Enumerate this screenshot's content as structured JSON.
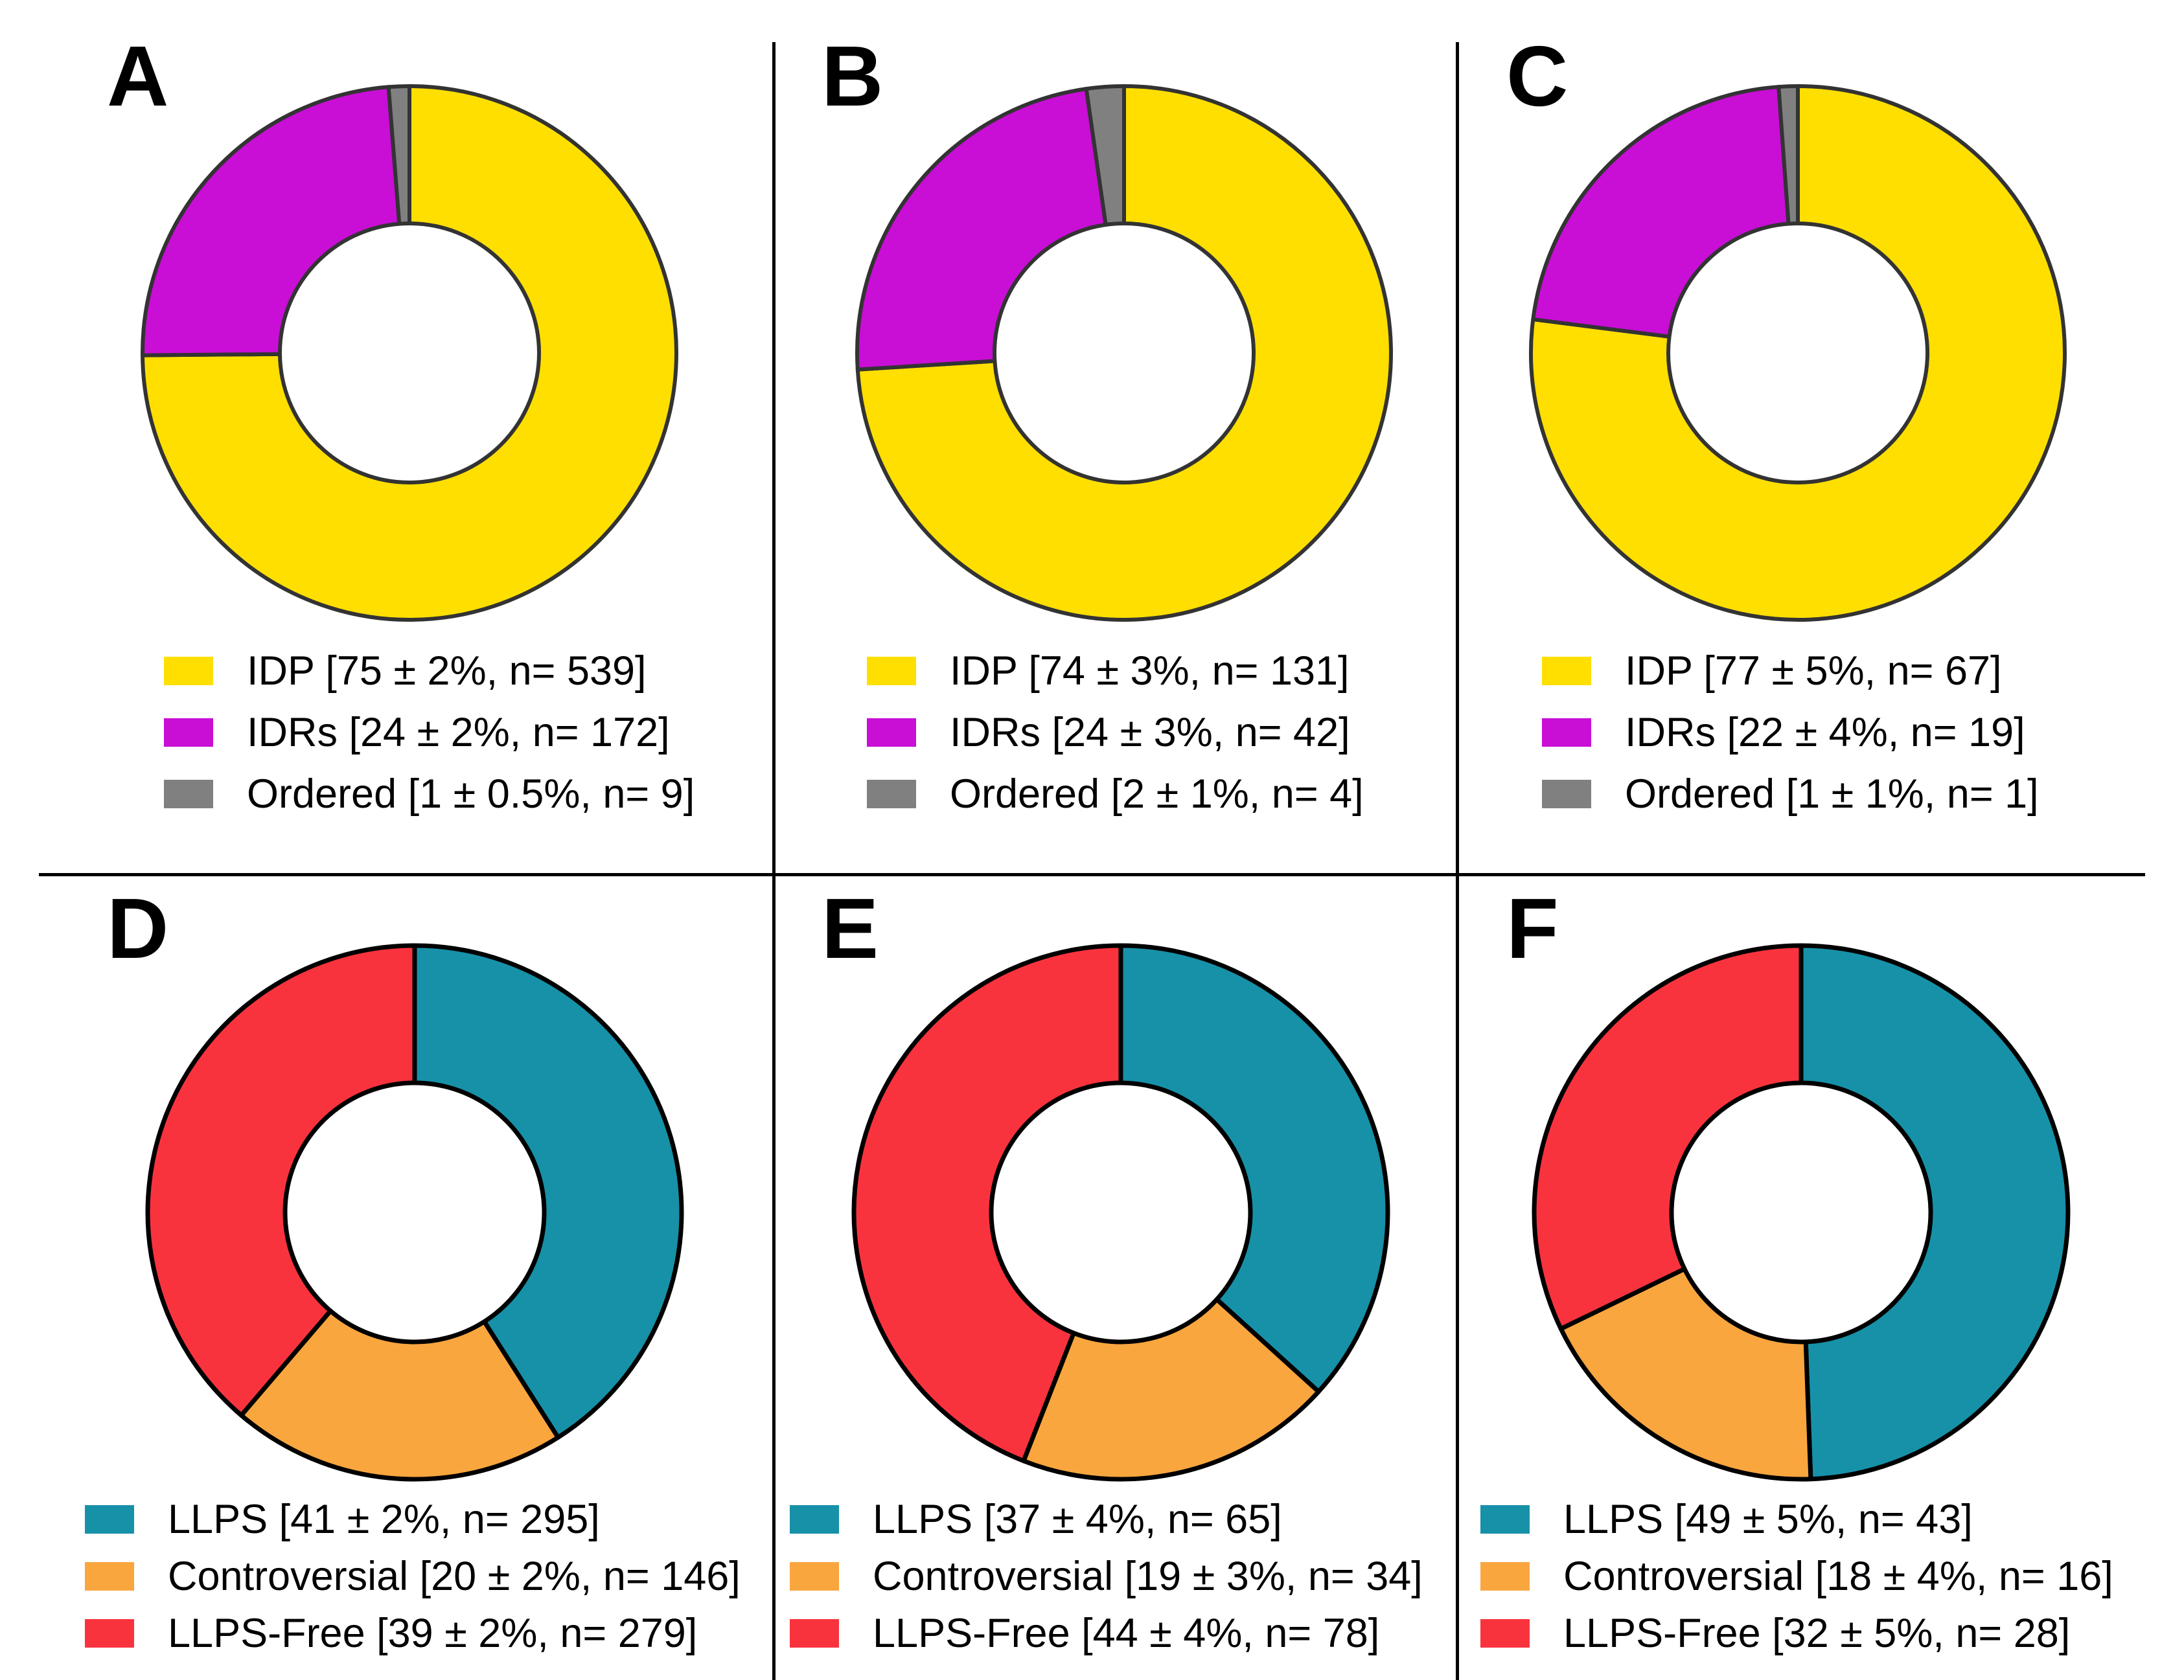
{
  "figure": {
    "description_visible_panels": [
      "A",
      "B",
      "C",
      "D",
      "E",
      "F"
    ],
    "divider_color": "#000000",
    "background": "#ffffff",
    "stroke_top_row": "#333333",
    "stroke_bottom_row": "#000000"
  },
  "chart_data": [
    {
      "panel": "A",
      "type": "pie",
      "subtype": "donut",
      "start_angle_deg": 0,
      "direction": "clockwise",
      "hole_ratio": 0.48,
      "legend_position": "below-left",
      "categories": [
        "IDP",
        "IDRs",
        "Ordered"
      ],
      "values_n": [
        539,
        172,
        9
      ],
      "percent": [
        75,
        24,
        1
      ],
      "error_pct": [
        2,
        2,
        0.5
      ],
      "colors": [
        "#FFDF00",
        "#C90ED6",
        "#808080"
      ],
      "legend": [
        "IDP [75 ± 2%, n= 539]",
        "IDRs [24 ± 2%, n= 172]",
        "Ordered [1 ± 0.5%, n= 9]"
      ]
    },
    {
      "panel": "B",
      "type": "pie",
      "subtype": "donut",
      "start_angle_deg": 0,
      "direction": "clockwise",
      "hole_ratio": 0.48,
      "legend_position": "below-left",
      "categories": [
        "IDP",
        "IDRs",
        "Ordered"
      ],
      "values_n": [
        131,
        42,
        4
      ],
      "percent": [
        74,
        24,
        2
      ],
      "error_pct": [
        3,
        3,
        1
      ],
      "colors": [
        "#FFDF00",
        "#C90ED6",
        "#808080"
      ],
      "legend": [
        "IDP [74 ± 3%, n= 131]",
        "IDRs [24 ± 3%, n= 42]",
        "Ordered [2 ± 1%, n= 4]"
      ]
    },
    {
      "panel": "C",
      "type": "pie",
      "subtype": "donut",
      "start_angle_deg": 0,
      "direction": "clockwise",
      "hole_ratio": 0.48,
      "legend_position": "below-left",
      "categories": [
        "IDP",
        "IDRs",
        "Ordered"
      ],
      "values_n": [
        67,
        19,
        1
      ],
      "percent": [
        77,
        22,
        1
      ],
      "error_pct": [
        5,
        4,
        1
      ],
      "colors": [
        "#FFDF00",
        "#C90ED6",
        "#808080"
      ],
      "legend": [
        "IDP [77 ± 5%, n= 67]",
        "IDRs [22 ± 4%, n= 19]",
        "Ordered [1 ± 1%, n= 1]"
      ]
    },
    {
      "panel": "D",
      "type": "pie",
      "subtype": "donut",
      "start_angle_deg": 0,
      "direction": "clockwise",
      "hole_ratio": 0.48,
      "legend_position": "below-left",
      "categories": [
        "LLPS",
        "Controversial",
        "LLPS-Free"
      ],
      "values_n": [
        295,
        146,
        279
      ],
      "percent": [
        41,
        20,
        39
      ],
      "error_pct": [
        2,
        2,
        2
      ],
      "colors": [
        "#1791A8",
        "#F9A63F",
        "#F9333E"
      ],
      "legend": [
        "LLPS [41 ± 2%, n= 295]",
        "Controversial [20 ± 2%, n= 146]",
        "LLPS-Free [39 ± 2%, n= 279]"
      ]
    },
    {
      "panel": "E",
      "type": "pie",
      "subtype": "donut",
      "start_angle_deg": 0,
      "direction": "clockwise",
      "hole_ratio": 0.48,
      "legend_position": "below-left",
      "categories": [
        "LLPS",
        "Controversial",
        "LLPS-Free"
      ],
      "values_n": [
        65,
        34,
        78
      ],
      "percent": [
        37,
        19,
        44
      ],
      "error_pct": [
        4,
        3,
        4
      ],
      "colors": [
        "#1791A8",
        "#F9A63F",
        "#F9333E"
      ],
      "legend": [
        "LLPS [37 ± 4%, n= 65]",
        "Controversial [19 ± 3%, n= 34]",
        "LLPS-Free [44 ± 4%, n= 78]"
      ]
    },
    {
      "panel": "F",
      "type": "pie",
      "subtype": "donut",
      "start_angle_deg": 0,
      "direction": "clockwise",
      "hole_ratio": 0.48,
      "legend_position": "below-left",
      "categories": [
        "LLPS",
        "Controversial",
        "LLPS-Free"
      ],
      "values_n": [
        43,
        16,
        28
      ],
      "percent": [
        49,
        18,
        32
      ],
      "error_pct": [
        5,
        4,
        5
      ],
      "colors": [
        "#1791A8",
        "#F9A63F",
        "#F9333E"
      ],
      "legend": [
        "LLPS [49 ± 5%, n= 43]",
        "Controversial [18 ± 4%, n= 16]",
        "LLPS-Free [32 ± 5%, n= 28]"
      ]
    }
  ]
}
